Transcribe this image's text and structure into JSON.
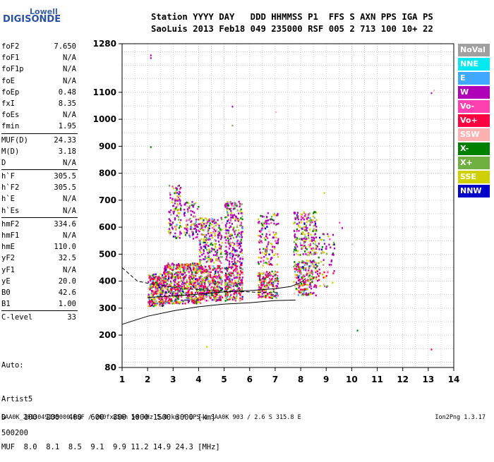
{
  "logo": {
    "line1": "Lowell",
    "line2": "DIGISONDE"
  },
  "header": {
    "labels": "Station YYYY DAY   DDD HHMMSS P1  FFS S AXN PPS IGA PS",
    "values": "SaoLuis 2013 Feb18 049 235000 RSF 005 2 713 100 10+ 22"
  },
  "params_group1": [
    {
      "k": "foF2",
      "v": "7.650"
    },
    {
      "k": "foF1",
      "v": "N/A"
    },
    {
      "k": "foF1p",
      "v": "N/A"
    },
    {
      "k": "foE",
      "v": "N/A"
    },
    {
      "k": "foEp",
      "v": "0.48"
    },
    {
      "k": "fxI",
      "v": "8.35"
    },
    {
      "k": "foEs",
      "v": "N/A"
    },
    {
      "k": "fmin",
      "v": "1.95"
    }
  ],
  "params_group2": [
    {
      "k": "MUF(D)",
      "v": "24.33"
    },
    {
      "k": "M(D)",
      "v": "3.18"
    },
    {
      "k": "D",
      "v": "N/A"
    }
  ],
  "params_group3": [
    {
      "k": "h`F",
      "v": "305.5"
    },
    {
      "k": "h`F2",
      "v": "305.5"
    },
    {
      "k": "h`E",
      "v": "N/A"
    },
    {
      "k": "h`Es",
      "v": "N/A"
    }
  ],
  "params_group4": [
    {
      "k": "hmF2",
      "v": "334.6"
    },
    {
      "k": "hmF1",
      "v": "N/A"
    },
    {
      "k": "hmE",
      "v": "110.0"
    },
    {
      "k": "yF2",
      "v": "32.5"
    },
    {
      "k": "yF1",
      "v": "N/A"
    },
    {
      "k": "yE",
      "v": "20.0"
    },
    {
      "k": "B0",
      "v": "42.6"
    },
    {
      "k": "B1",
      "v": "1.00"
    }
  ],
  "params_group5": [
    {
      "k": "C-level",
      "v": "33"
    }
  ],
  "auto": {
    "line1": "Auto:",
    "line2": "Artist5",
    "line3": "500200"
  },
  "dtable": {
    "row1": "D    100  200  400  600  800 1000 1500 3000 [km]",
    "row2": "MUF  8.0  8.1  8.5  9.1  9.9 11.2 14.9 24.3 [MHz]"
  },
  "footer": {
    "left": "SAA0K_2013049235000.RSF / 260fx256h 50 kHz 5.0 km / DPS-4 SAA0K 903 / 2.6 S 315.8 E",
    "right": "Ion2Png 1.3.17"
  },
  "legend": [
    {
      "label": "NoVal",
      "color": "#a0a0a0"
    },
    {
      "label": "NNE",
      "color": "#00e8f0"
    },
    {
      "label": "E",
      "color": "#40a8ff"
    },
    {
      "label": "W",
      "color": "#b000b8"
    },
    {
      "label": "Vo-",
      "color": "#ff40b0"
    },
    {
      "label": "Vo+",
      "color": "#ff0040"
    },
    {
      "label": "SSW",
      "color": "#ffb0b0"
    },
    {
      "label": "X-",
      "color": "#008000"
    },
    {
      "label": "X+",
      "color": "#70b040"
    },
    {
      "label": "SSE",
      "color": "#d0d000"
    },
    {
      "label": "NNW",
      "color": "#0000c8"
    }
  ],
  "chart_data": {
    "type": "scatter",
    "xlim": [
      1,
      14
    ],
    "ylim": [
      80,
      1280
    ],
    "x_ticks": [
      1,
      2,
      3,
      4,
      5,
      6,
      7,
      8,
      9,
      10,
      11,
      12,
      13,
      14
    ],
    "y_ticks": [
      80,
      200,
      300,
      400,
      500,
      600,
      700,
      800,
      900,
      1000,
      1100,
      1280
    ],
    "grid": true,
    "clusters": [
      {
        "f": [
          2.0,
          2.6
        ],
        "h": [
          310,
          430
        ],
        "n": 260
      },
      {
        "f": [
          2.6,
          3.3
        ],
        "h": [
          320,
          470
        ],
        "n": 300
      },
      {
        "f": [
          2.8,
          3.3
        ],
        "h": [
          560,
          760
        ],
        "n": 110
      },
      {
        "f": [
          3.3,
          4.1
        ],
        "h": [
          320,
          470
        ],
        "n": 320
      },
      {
        "f": [
          3.4,
          4.0
        ],
        "h": [
          560,
          700
        ],
        "n": 90
      },
      {
        "f": [
          4.0,
          4.9
        ],
        "h": [
          330,
          460
        ],
        "n": 320
      },
      {
        "f": [
          4.0,
          4.9
        ],
        "h": [
          470,
          640
        ],
        "n": 220
      },
      {
        "f": [
          5.0,
          5.7
        ],
        "h": [
          330,
          460
        ],
        "n": 220
      },
      {
        "f": [
          5.0,
          5.7
        ],
        "h": [
          460,
          700
        ],
        "n": 260
      },
      {
        "f": [
          6.3,
          7.1
        ],
        "h": [
          340,
          440
        ],
        "n": 180
      },
      {
        "f": [
          6.3,
          7.1
        ],
        "h": [
          460,
          660
        ],
        "n": 140
      },
      {
        "f": [
          7.7,
          8.6
        ],
        "h": [
          350,
          480
        ],
        "n": 200
      },
      {
        "f": [
          7.7,
          8.6
        ],
        "h": [
          500,
          660
        ],
        "n": 200
      },
      {
        "f": [
          8.6,
          9.3
        ],
        "h": [
          380,
          580
        ],
        "n": 70
      }
    ],
    "outliers": [
      {
        "x": 2.1,
        "y": 1240
      },
      {
        "x": 2.1,
        "y": 1230
      },
      {
        "x": 2.1,
        "y": 900
      },
      {
        "x": 5.3,
        "y": 1050
      },
      {
        "x": 5.3,
        "y": 980
      },
      {
        "x": 7.0,
        "y": 1030
      },
      {
        "x": 8.9,
        "y": 730
      },
      {
        "x": 10.2,
        "y": 220
      },
      {
        "x": 10.0,
        "y": 540
      },
      {
        "x": 13.2,
        "y": 1110
      },
      {
        "x": 13.1,
        "y": 1100
      },
      {
        "x": 13.1,
        "y": 150
      },
      {
        "x": 4.3,
        "y": 160
      },
      {
        "x": 9.5,
        "y": 620
      },
      {
        "x": 9.6,
        "y": 600
      }
    ],
    "profile_lower": [
      [
        1,
        240
      ],
      [
        2,
        270
      ],
      [
        3,
        290
      ],
      [
        4,
        305
      ],
      [
        5,
        315
      ],
      [
        6,
        320
      ],
      [
        7,
        328
      ],
      [
        7.8,
        330
      ]
    ],
    "profile_dashed": [
      [
        1,
        450
      ],
      [
        1.6,
        400
      ],
      [
        2.4,
        385
      ],
      [
        3.5,
        372
      ],
      [
        4.5,
        365
      ],
      [
        5.5,
        362
      ],
      [
        6.5,
        358
      ],
      [
        7.2,
        357
      ]
    ],
    "profile_upper": [
      [
        2.0,
        340
      ],
      [
        3.0,
        345
      ],
      [
        4.0,
        352
      ],
      [
        5.0,
        360
      ],
      [
        6.0,
        365
      ],
      [
        7.0,
        372
      ],
      [
        7.6,
        380
      ],
      [
        8.0,
        395
      ],
      [
        8.2,
        410
      ]
    ]
  }
}
